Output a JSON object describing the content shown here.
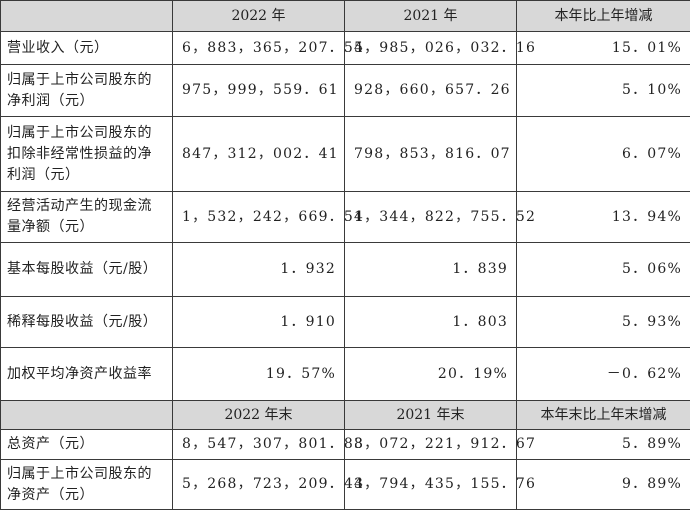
{
  "header1": {
    "col1": "",
    "col2": "2022 年",
    "col3": "2021 年",
    "col4": "本年比上年增减"
  },
  "rows1": [
    {
      "label": "营业收入（元）",
      "v2022": "6，883，365，207．54",
      "v2021": "5，985，026，032．16",
      "change": "15．01%"
    },
    {
      "label": "归属于上市公司股东的净利润（元）",
      "v2022": "975，999，559．61",
      "v2021": "928，660，657．26",
      "change": "5．10%"
    },
    {
      "label": "归属于上市公司股东的扣除非经常性损益的净利润（元）",
      "v2022": "847，312，002．41",
      "v2021": "798，853，816．07",
      "change": "6．07%"
    },
    {
      "label": "经营活动产生的现金流量净额（元）",
      "v2022": "1，532，242，669．54",
      "v2021": "1，344，822，755．52",
      "change": "13．94%"
    },
    {
      "label": "基本每股收益（元/股）",
      "v2022": "1．932",
      "v2021": "1．839",
      "change": "5．06%"
    },
    {
      "label": "稀释每股收益（元/股）",
      "v2022": "1．910",
      "v2021": "1．803",
      "change": "5．93%"
    },
    {
      "label": "加权平均净资产收益率",
      "v2022": "19．57%",
      "v2021": "20．19%",
      "change": "－0．62%"
    }
  ],
  "header2": {
    "col1": "",
    "col2": "2022 年末",
    "col3": "2021 年末",
    "col4": "本年末比上年末增减"
  },
  "rows2": [
    {
      "label": "总资产（元）",
      "v2022": "8，547，307，801．83",
      "v2021": "8，072，221，912．67",
      "change": "5．89%"
    },
    {
      "label": "归属于上市公司股东的净资产（元）",
      "v2022": "5，268，723，209．43",
      "v2021": "4，794，435，155．76",
      "change": "9．89%"
    }
  ]
}
